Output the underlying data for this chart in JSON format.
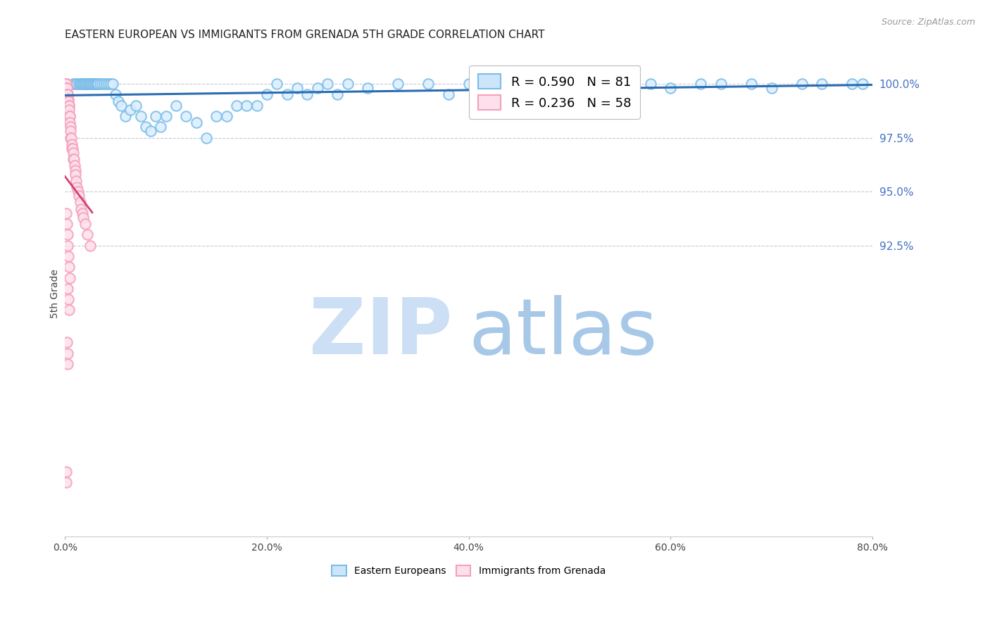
{
  "title": "EASTERN EUROPEAN VS IMMIGRANTS FROM GRENADA 5TH GRADE CORRELATION CHART",
  "source": "Source: ZipAtlas.com",
  "ylabel": "5th Grade",
  "xlim": [
    0.0,
    80.0
  ],
  "ylim": [
    79.0,
    101.5
  ],
  "yticks_right": [
    92.5,
    95.0,
    97.5,
    100.0
  ],
  "xticks": [
    0.0,
    20.0,
    40.0,
    60.0,
    80.0
  ],
  "legend_blue_r": "R = 0.590",
  "legend_blue_n": "N = 81",
  "legend_pink_r": "R = 0.236",
  "legend_pink_n": "N = 58",
  "blue_scatter_color": "#7bbde8",
  "pink_scatter_color": "#f4a0bb",
  "blue_line_color": "#2b6cb0",
  "pink_line_color": "#d44070",
  "grid_color": "#c8c8dc",
  "title_color": "#222222",
  "axis_label_color": "#444444",
  "right_axis_color": "#4472c4",
  "watermark_zip_color": "#ccdff5",
  "watermark_atlas_color": "#a8c8e8",
  "blue_scatter_x": [
    0.8,
    1.0,
    1.2,
    1.4,
    1.5,
    1.6,
    1.7,
    1.8,
    1.9,
    2.0,
    2.1,
    2.2,
    2.3,
    2.4,
    2.5,
    2.6,
    2.7,
    2.8,
    2.9,
    3.0,
    3.1,
    3.2,
    3.3,
    3.5,
    3.7,
    3.9,
    4.1,
    4.3,
    4.5,
    4.7,
    5.0,
    5.3,
    5.6,
    6.0,
    6.5,
    7.0,
    7.5,
    8.0,
    8.5,
    9.0,
    9.5,
    10.0,
    11.0,
    12.0,
    13.0,
    14.0,
    15.0,
    16.0,
    17.0,
    18.0,
    19.0,
    20.0,
    21.0,
    22.0,
    23.0,
    24.0,
    25.0,
    26.0,
    27.0,
    28.0,
    30.0,
    33.0,
    36.0,
    38.0,
    40.0,
    42.0,
    45.0,
    48.0,
    50.0,
    52.0,
    55.0,
    58.0,
    60.0,
    63.0,
    65.0,
    68.0,
    70.0,
    73.0,
    75.0,
    78.0,
    79.0
  ],
  "blue_scatter_y": [
    100.0,
    100.0,
    100.0,
    100.0,
    100.0,
    100.0,
    100.0,
    100.0,
    100.0,
    100.0,
    100.0,
    100.0,
    100.0,
    100.0,
    100.0,
    100.0,
    100.0,
    100.0,
    100.0,
    100.0,
    100.0,
    100.0,
    100.0,
    100.0,
    100.0,
    100.0,
    100.0,
    100.0,
    100.0,
    100.0,
    99.5,
    99.2,
    99.0,
    98.5,
    98.8,
    99.0,
    98.5,
    98.0,
    97.8,
    98.5,
    98.0,
    98.5,
    99.0,
    98.5,
    98.2,
    97.5,
    98.5,
    98.5,
    99.0,
    99.0,
    99.0,
    99.5,
    100.0,
    99.5,
    99.8,
    99.5,
    99.8,
    100.0,
    99.5,
    100.0,
    99.8,
    100.0,
    100.0,
    99.5,
    100.0,
    100.0,
    100.0,
    100.0,
    100.0,
    100.0,
    100.0,
    100.0,
    99.8,
    100.0,
    100.0,
    100.0,
    99.8,
    100.0,
    100.0,
    100.0,
    100.0
  ],
  "pink_scatter_x": [
    0.05,
    0.08,
    0.1,
    0.12,
    0.15,
    0.18,
    0.2,
    0.22,
    0.25,
    0.28,
    0.3,
    0.32,
    0.35,
    0.38,
    0.4,
    0.42,
    0.45,
    0.48,
    0.5,
    0.52,
    0.55,
    0.58,
    0.6,
    0.65,
    0.7,
    0.75,
    0.8,
    0.85,
    0.9,
    0.95,
    1.0,
    1.05,
    1.1,
    1.2,
    1.3,
    1.4,
    1.5,
    1.6,
    1.7,
    1.8,
    2.0,
    2.2,
    2.5,
    0.15,
    0.2,
    0.25,
    0.3,
    0.35,
    0.4,
    0.45,
    0.3,
    0.35,
    0.4,
    0.2,
    0.25,
    0.3,
    0.1,
    0.15
  ],
  "pink_scatter_y": [
    100.0,
    100.0,
    100.0,
    100.0,
    100.0,
    99.8,
    99.8,
    99.8,
    99.5,
    99.5,
    99.5,
    99.3,
    99.2,
    99.0,
    99.0,
    98.8,
    98.5,
    98.5,
    98.2,
    98.0,
    97.8,
    97.5,
    97.5,
    97.2,
    97.0,
    97.0,
    96.8,
    96.5,
    96.5,
    96.2,
    96.0,
    95.8,
    95.5,
    95.2,
    95.0,
    94.8,
    94.5,
    94.2,
    94.0,
    93.8,
    93.5,
    93.0,
    92.5,
    94.0,
    93.5,
    93.0,
    92.5,
    92.0,
    91.5,
    91.0,
    90.5,
    90.0,
    89.5,
    88.0,
    87.5,
    87.0,
    82.0,
    81.5
  ]
}
